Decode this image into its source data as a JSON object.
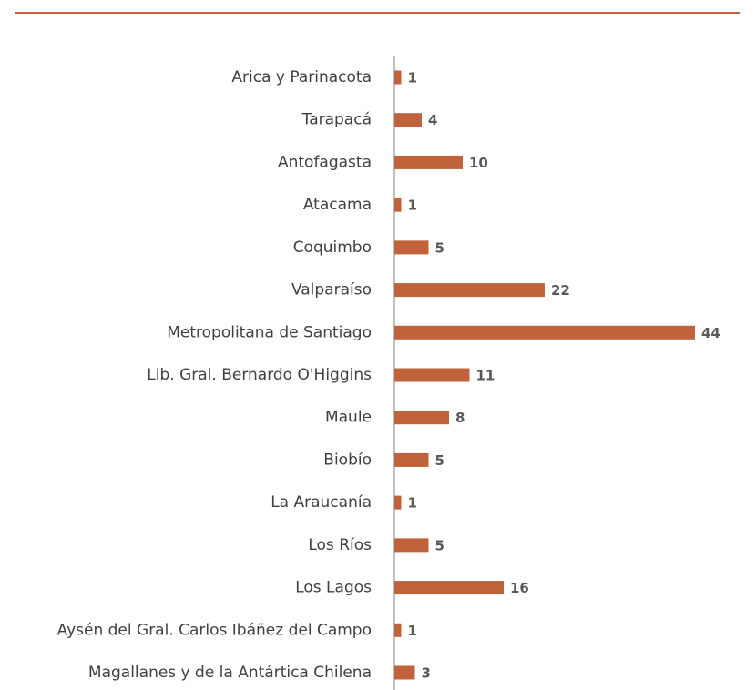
{
  "chart_data": {
    "type": "bar",
    "color": "#c0623b",
    "categories": [
      "Arica y Parinacota",
      "Tarapacá",
      "Antofagasta",
      "Atacama",
      "Coquimbo",
      "Valparaíso",
      "Metropolitana de Santiago",
      "Lib. Gral. Bernardo O'Higgins",
      "Maule",
      "Biobío",
      "La Araucanía",
      "Los Ríos",
      "Los Lagos",
      "Aysén del Gral. Carlos Ibáñez del Campo",
      "Magallanes y de la Antártica Chilena"
    ],
    "values": [
      1,
      4,
      10,
      1,
      5,
      22,
      44,
      11,
      8,
      5,
      1,
      5,
      16,
      1,
      3
    ]
  }
}
